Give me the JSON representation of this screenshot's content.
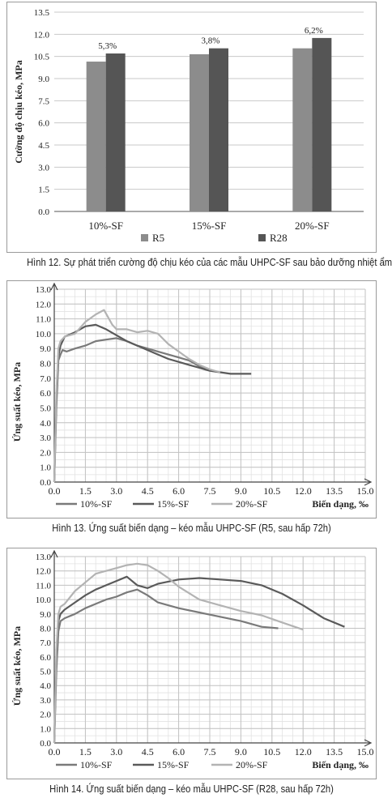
{
  "chart_data": [
    {
      "type": "bar",
      "ylabel": "Cường độ chịu kéo, MPa",
      "xlabel": "",
      "categories": [
        "10%-SF",
        "15%-SF",
        "20%-SF"
      ],
      "ylim": [
        0,
        13.5
      ],
      "yticks": [
        "0.0",
        "1.5",
        "3.0",
        "4.5",
        "6.0",
        "7.5",
        "9.0",
        "10.5",
        "12.0",
        "13.5"
      ],
      "series": [
        {
          "name": "R5",
          "color": "#8c8c8c",
          "values": [
            10.15,
            10.65,
            11.05
          ]
        },
        {
          "name": "R28",
          "color": "#555555",
          "values": [
            10.7,
            11.05,
            11.75
          ]
        }
      ],
      "annotations": [
        "5,3%",
        "3,8%",
        "6,2%"
      ],
      "legend": "bottom",
      "grid": true
    },
    {
      "type": "line",
      "ylabel": "Ứng suất kéo, MPa",
      "xlabel": "Biến dạng, ‰",
      "xlim": [
        0,
        15
      ],
      "ylim": [
        0,
        13
      ],
      "xticks": [
        "0.0",
        "1.5",
        "3.0",
        "4.5",
        "6.0",
        "7.5",
        "9.0",
        "10.5",
        "12.0",
        "13.5",
        "15.0"
      ],
      "yticks": [
        "0.0",
        "1.0",
        "2.0",
        "3.0",
        "4.0",
        "5.0",
        "6.0",
        "7.0",
        "8.0",
        "9.0",
        "10.0",
        "11.0",
        "12.0",
        "13.0"
      ],
      "legend": "bottom",
      "grid": true,
      "series": [
        {
          "name": "10%-SF",
          "color": "#7a7a7a",
          "x": [
            0,
            0.1,
            0.2,
            0.3,
            0.4,
            0.6,
            1.0,
            1.5,
            2.0,
            2.5,
            3.0,
            3.5,
            4.0,
            4.5,
            5.0,
            5.5,
            6.0,
            6.5,
            7.0,
            7.3
          ],
          "y": [
            0,
            5.0,
            8.2,
            8.6,
            8.9,
            8.8,
            9.0,
            9.2,
            9.5,
            9.6,
            9.7,
            9.5,
            9.2,
            9.0,
            8.8,
            8.6,
            8.4,
            8.2,
            7.8,
            7.6
          ]
        },
        {
          "name": "15%-SF",
          "color": "#5a5a5a",
          "x": [
            0,
            0.1,
            0.2,
            0.3,
            0.5,
            1.0,
            1.5,
            2.0,
            2.5,
            3.0,
            3.5,
            4.0,
            4.5,
            5.0,
            5.5,
            6.0,
            6.5,
            7.0,
            7.5,
            8.0,
            8.5,
            9.0,
            9.5
          ],
          "y": [
            0,
            5.5,
            8.5,
            9.2,
            9.8,
            10.1,
            10.5,
            10.6,
            10.3,
            9.9,
            9.5,
            9.2,
            8.9,
            8.6,
            8.3,
            8.1,
            7.9,
            7.7,
            7.5,
            7.4,
            7.3,
            7.3,
            7.3
          ]
        },
        {
          "name": "20%-SF",
          "color": "#b3b3b3",
          "x": [
            0,
            0.1,
            0.2,
            0.3,
            0.5,
            1.0,
            1.5,
            2.0,
            2.4,
            2.8,
            3.0,
            3.5,
            4.0,
            4.5,
            5.0,
            5.5,
            6.0,
            6.5,
            7.0,
            7.5,
            8.0
          ],
          "y": [
            0,
            6.0,
            9.0,
            9.5,
            9.8,
            10.0,
            10.8,
            11.3,
            11.6,
            10.6,
            10.3,
            10.3,
            10.1,
            10.2,
            10.0,
            9.3,
            8.8,
            8.3,
            7.9,
            7.6,
            7.4
          ]
        }
      ]
    },
    {
      "type": "line",
      "ylabel": "Ứng suất kéo, MPa",
      "xlabel": "Biến dạng, ‰",
      "xlim": [
        0,
        15
      ],
      "ylim": [
        0,
        13
      ],
      "xticks": [
        "0.0",
        "1.5",
        "3.0",
        "4.5",
        "6.0",
        "7.5",
        "9.0",
        "10.5",
        "12.0",
        "13.5",
        "15.0"
      ],
      "yticks": [
        "0.0",
        "1.0",
        "2.0",
        "3.0",
        "4.0",
        "5.0",
        "6.0",
        "7.0",
        "8.0",
        "9.0",
        "10.0",
        "11.0",
        "12.0",
        "13.0"
      ],
      "legend": "bottom",
      "grid": true,
      "series": [
        {
          "name": "10%-SF",
          "color": "#7a7a7a",
          "x": [
            0,
            0.1,
            0.2,
            0.3,
            0.5,
            1.0,
            1.5,
            2.0,
            2.5,
            3.0,
            3.5,
            4.0,
            4.5,
            5.0,
            6.0,
            7.0,
            8.0,
            9.0,
            10.0,
            10.8
          ],
          "y": [
            0,
            5.0,
            7.8,
            8.5,
            8.7,
            9.0,
            9.4,
            9.7,
            10.0,
            10.2,
            10.5,
            10.7,
            10.3,
            9.8,
            9.4,
            9.1,
            8.8,
            8.5,
            8.1,
            8.0
          ]
        },
        {
          "name": "15%-SF",
          "color": "#5a5a5a",
          "x": [
            0,
            0.1,
            0.2,
            0.3,
            0.5,
            1.0,
            1.5,
            2.0,
            2.5,
            3.0,
            3.5,
            4.0,
            4.5,
            5.0,
            6.0,
            7.0,
            8.0,
            9.0,
            10.0,
            11.0,
            12.0,
            13.0,
            14.0
          ],
          "y": [
            0,
            6.0,
            8.5,
            9.0,
            9.3,
            9.8,
            10.3,
            10.7,
            11.0,
            11.3,
            11.6,
            11.0,
            10.8,
            11.1,
            11.4,
            11.5,
            11.4,
            11.3,
            11.0,
            10.4,
            9.6,
            8.7,
            8.1
          ]
        },
        {
          "name": "20%-SF",
          "color": "#b3b3b3",
          "x": [
            0,
            0.1,
            0.2,
            0.3,
            0.5,
            1.0,
            1.5,
            2.0,
            2.5,
            3.0,
            3.5,
            4.0,
            4.5,
            5.0,
            5.5,
            6.0,
            7.0,
            8.0,
            9.0,
            10.0,
            11.0,
            12.0
          ],
          "y": [
            0,
            6.5,
            9.0,
            9.5,
            9.7,
            10.6,
            11.2,
            11.8,
            12.0,
            12.2,
            12.4,
            12.5,
            12.4,
            12.0,
            11.5,
            10.9,
            10.0,
            9.6,
            9.2,
            8.9,
            8.4,
            7.9
          ]
        }
      ]
    }
  ],
  "captions": {
    "fig12": "Hình 12. Sự phát triển cường độ chịu kéo của các mẫu UHPC-SF sau bảo dưỡng nhiệt ẩm",
    "fig13": "Hình 13. Ứng suất biến dạng – kéo mẫu UHPC-SF (R5, sau hấp 72h)",
    "fig14": "Hình 14. Ứng suất biến dạng – kéo mẫu UHPC-SF (R28, sau hấp 72h)"
  }
}
